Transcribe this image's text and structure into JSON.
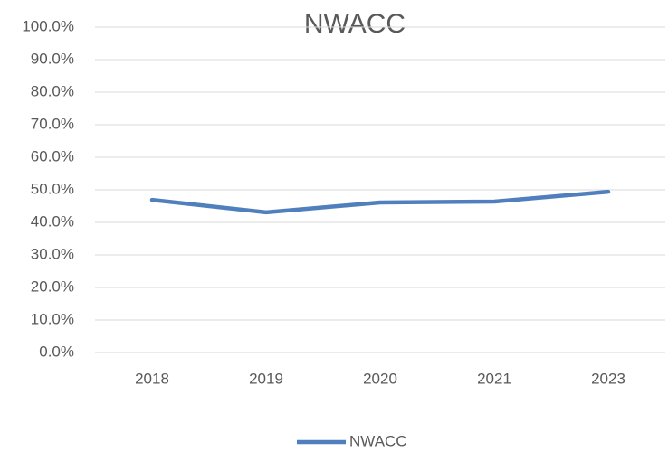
{
  "chart_data": {
    "type": "line",
    "title": "NWACC",
    "categories": [
      "2018",
      "2019",
      "2020",
      "2021",
      "2023"
    ],
    "series": [
      {
        "name": "NWACC",
        "color": "#4f7fbc",
        "values": [
          46.9,
          43.1,
          46.1,
          46.4,
          49.4
        ]
      }
    ],
    "ylim": [
      0,
      100
    ],
    "yticks": [
      {
        "value": 0,
        "label": "0.0%"
      },
      {
        "value": 10,
        "label": "10.0%"
      },
      {
        "value": 20,
        "label": "20.0%"
      },
      {
        "value": 30,
        "label": "30.0%"
      },
      {
        "value": 40,
        "label": "40.0%"
      },
      {
        "value": 50,
        "label": "50.0%"
      },
      {
        "value": 60,
        "label": "60.0%"
      },
      {
        "value": 70,
        "label": "70.0%"
      },
      {
        "value": 80,
        "label": "80.0%"
      },
      {
        "value": 90,
        "label": "90.0%"
      },
      {
        "value": 100,
        "label": "100.0%"
      }
    ],
    "grid": true,
    "legend": "bottom"
  }
}
